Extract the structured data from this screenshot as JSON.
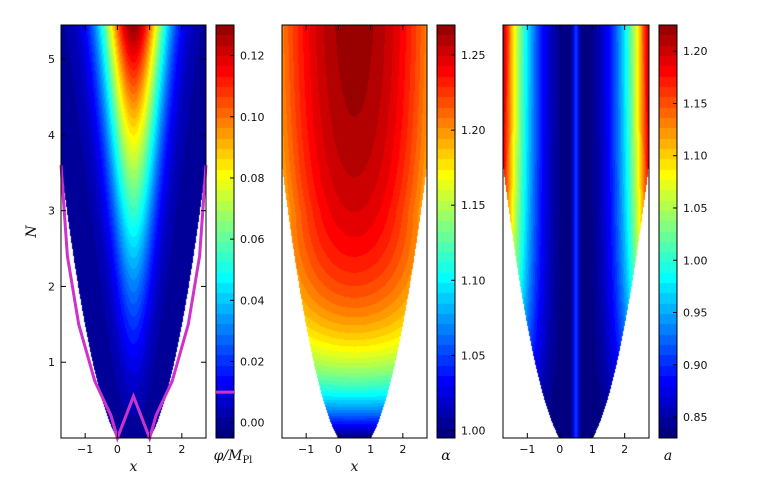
{
  "chart_data": [
    {
      "type": "heatmap",
      "title": "",
      "xlabel": "x",
      "ylabel": "N",
      "xlim": [
        -1.75,
        2.75
      ],
      "ylim": [
        0,
        5.45
      ],
      "xticks": [
        -1,
        0,
        1,
        2
      ],
      "yticks": [
        1,
        2,
        3,
        4,
        5
      ],
      "xtick_labels": [
        "−1",
        "0",
        "1",
        "2"
      ],
      "ytick_labels": [
        "1",
        "2",
        "3",
        "4",
        "5"
      ],
      "field": "phi",
      "domain": "N ≥ 0.75·(x−0.5)² − 0.2",
      "peak": {
        "x": 0.5,
        "N": 5.45,
        "value": 0.13
      },
      "contour": {
        "color": "#cc33cc",
        "level": 0.01,
        "points": [
          [
            -1.75,
            3.6
          ],
          [
            -1.55,
            2.4
          ],
          [
            -1.2,
            1.5
          ],
          [
            -0.7,
            0.75
          ],
          [
            -0.2,
            0.3
          ],
          [
            0.0,
            0.0
          ],
          [
            0.5,
            0.55
          ],
          [
            1.0,
            0.0
          ],
          [
            1.2,
            0.3
          ],
          [
            1.7,
            0.75
          ],
          [
            2.2,
            1.5
          ],
          [
            2.55,
            2.4
          ],
          [
            2.75,
            3.6
          ]
        ]
      },
      "colorbar": {
        "label": "φ/M",
        "label_sub": "Pl",
        "min": -0.005,
        "max": 0.13,
        "ticks": [
          0.0,
          0.02,
          0.04,
          0.06,
          0.08,
          0.1,
          0.12
        ],
        "tick_labels": [
          "0.00",
          "0.02",
          "0.04",
          "0.06",
          "0.08",
          "0.10",
          "0.12"
        ],
        "marker": 0.01
      }
    },
    {
      "type": "heatmap",
      "title": "",
      "xlabel": "x",
      "ylabel": "",
      "xlim": [
        -1.75,
        2.75
      ],
      "ylim": [
        0,
        5.45
      ],
      "xticks": [
        -1,
        0,
        1,
        2
      ],
      "xtick_labels": [
        "−1",
        "0",
        "1",
        "2"
      ],
      "field": "alpha",
      "colorbar": {
        "label": "α",
        "label_sub": "",
        "min": 0.995,
        "max": 1.27,
        "ticks": [
          1.0,
          1.05,
          1.1,
          1.15,
          1.2,
          1.25
        ],
        "tick_labels": [
          "1.00",
          "1.05",
          "1.10",
          "1.15",
          "1.20",
          "1.25"
        ]
      }
    },
    {
      "type": "heatmap",
      "title": "",
      "xlabel": "",
      "ylabel": "",
      "xlim": [
        -1.75,
        2.75
      ],
      "ylim": [
        0,
        5.45
      ],
      "xticks": [
        -1,
        0,
        1,
        2
      ],
      "xtick_labels": [
        "−1",
        "0",
        "1",
        "2"
      ],
      "field": "a",
      "colorbar": {
        "label": "a",
        "label_sub": "",
        "min": 0.83,
        "max": 1.225,
        "ticks": [
          0.85,
          0.9,
          0.95,
          1.0,
          1.05,
          1.1,
          1.15,
          1.2
        ],
        "tick_labels": [
          "0.85",
          "0.90",
          "0.95",
          "1.00",
          "1.05",
          "1.10",
          "1.15",
          "1.20"
        ]
      }
    }
  ]
}
